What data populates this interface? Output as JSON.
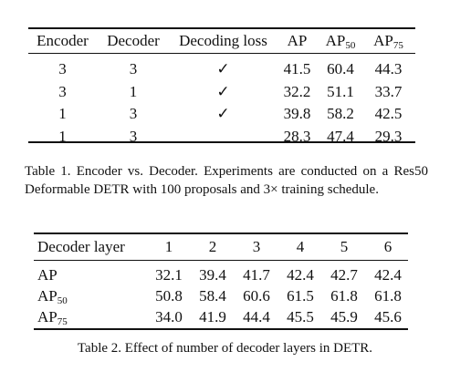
{
  "table1": {
    "headers": {
      "encoder": "Encoder",
      "decoder": "Decoder",
      "decoding_loss": "Decoding loss",
      "ap": "AP",
      "ap50_base": "AP",
      "ap50_sub": "50",
      "ap75_base": "AP",
      "ap75_sub": "75"
    },
    "rows": [
      {
        "encoder": "3",
        "decoder": "3",
        "loss": "✓",
        "ap": "41.5",
        "ap50": "60.4",
        "ap75": "44.3"
      },
      {
        "encoder": "3",
        "decoder": "1",
        "loss": "✓",
        "ap": "32.2",
        "ap50": "51.1",
        "ap75": "33.7"
      },
      {
        "encoder": "1",
        "decoder": "3",
        "loss": "✓",
        "ap": "39.8",
        "ap50": "58.2",
        "ap75": "42.5"
      },
      {
        "encoder": "1",
        "decoder": "3",
        "loss": "",
        "ap": "28.3",
        "ap50": "47.4",
        "ap75": "29.3"
      }
    ],
    "caption": "Table 1. Encoder vs.  Decoder.  Experiments are conducted on a Res50 Deformable DETR with 100 proposals and 3× training schedule."
  },
  "table2": {
    "header_label": "Decoder layer",
    "layers": [
      "1",
      "2",
      "3",
      "4",
      "5",
      "6"
    ],
    "rows": [
      {
        "label_base": "AP",
        "label_sub": "",
        "values": [
          "32.1",
          "39.4",
          "41.7",
          "42.4",
          "42.7",
          "42.4"
        ]
      },
      {
        "label_base": "AP",
        "label_sub": "50",
        "values": [
          "50.8",
          "58.4",
          "60.6",
          "61.5",
          "61.8",
          "61.8"
        ]
      },
      {
        "label_base": "AP",
        "label_sub": "75",
        "values": [
          "34.0",
          "41.9",
          "44.4",
          "45.5",
          "45.9",
          "45.6"
        ]
      }
    ],
    "caption": "Table 2. Effect of number of decoder layers in DETR."
  }
}
